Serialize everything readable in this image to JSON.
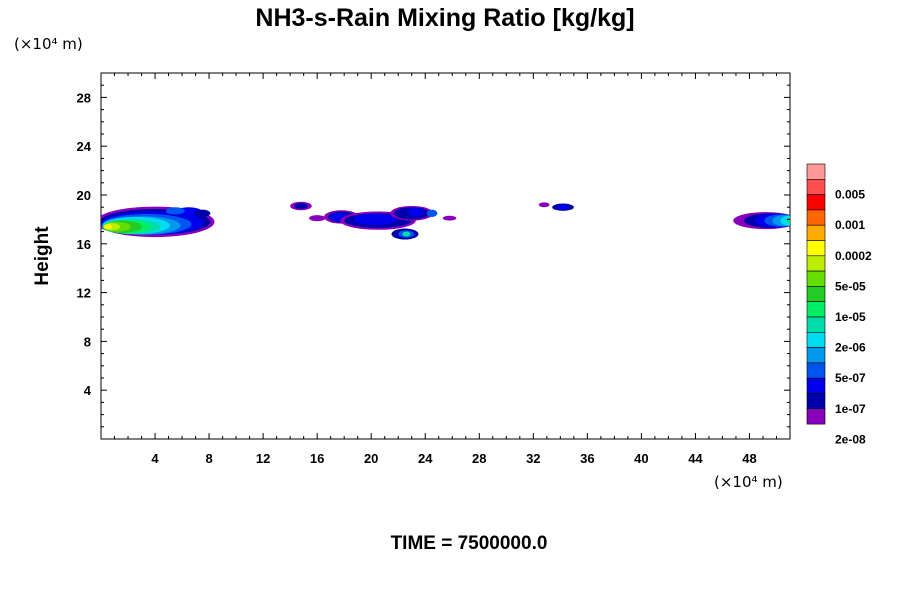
{
  "chart_data": {
    "type": "heatmap",
    "title": "NH3-s-Rain Mixing Ratio [kg/kg]",
    "ylabel": "Height",
    "xlabel": "",
    "x_unit": "(×10⁴ m)",
    "y_unit": "(×10⁴ m)",
    "xlim": [
      0,
      51
    ],
    "ylim": [
      0,
      30
    ],
    "x_ticks": [
      4,
      8,
      12,
      16,
      20,
      24,
      28,
      32,
      36,
      40,
      44,
      48
    ],
    "y_ticks": [
      4,
      8,
      12,
      16,
      20,
      24,
      28
    ],
    "colorbar": {
      "labels": [
        "0.005",
        "0.001",
        "0.0002",
        "5e-05",
        "1e-05",
        "2e-06",
        "5e-07",
        "1e-07",
        "2e-08"
      ],
      "colors": [
        "#ff9999",
        "#ff5050",
        "#ff0000",
        "#ff6600",
        "#ffaa00",
        "#ffff00",
        "#bbee00",
        "#66dd00",
        "#22cc22",
        "#00ee66",
        "#00ddaa",
        "#00ddee",
        "#0099ee",
        "#0055ee",
        "#0000ee",
        "#0000aa",
        "#8800bb"
      ]
    },
    "features": [
      {
        "x_range": [
          0,
          8.5
        ],
        "y_range": [
          16.5,
          19.2
        ],
        "max_level": "5e-05"
      },
      {
        "x_range": [
          13.5,
          26.5
        ],
        "y_range": [
          16.2,
          19.6
        ],
        "max_level": "2e-06"
      },
      {
        "x_range": [
          32,
          35.5
        ],
        "y_range": [
          18.6,
          19.5
        ],
        "max_level": "1e-07"
      },
      {
        "x_range": [
          47,
          51
        ],
        "y_range": [
          17.0,
          18.6
        ],
        "max_level": "5e-06"
      }
    ],
    "time_label": "TIME = 7500000.0"
  }
}
